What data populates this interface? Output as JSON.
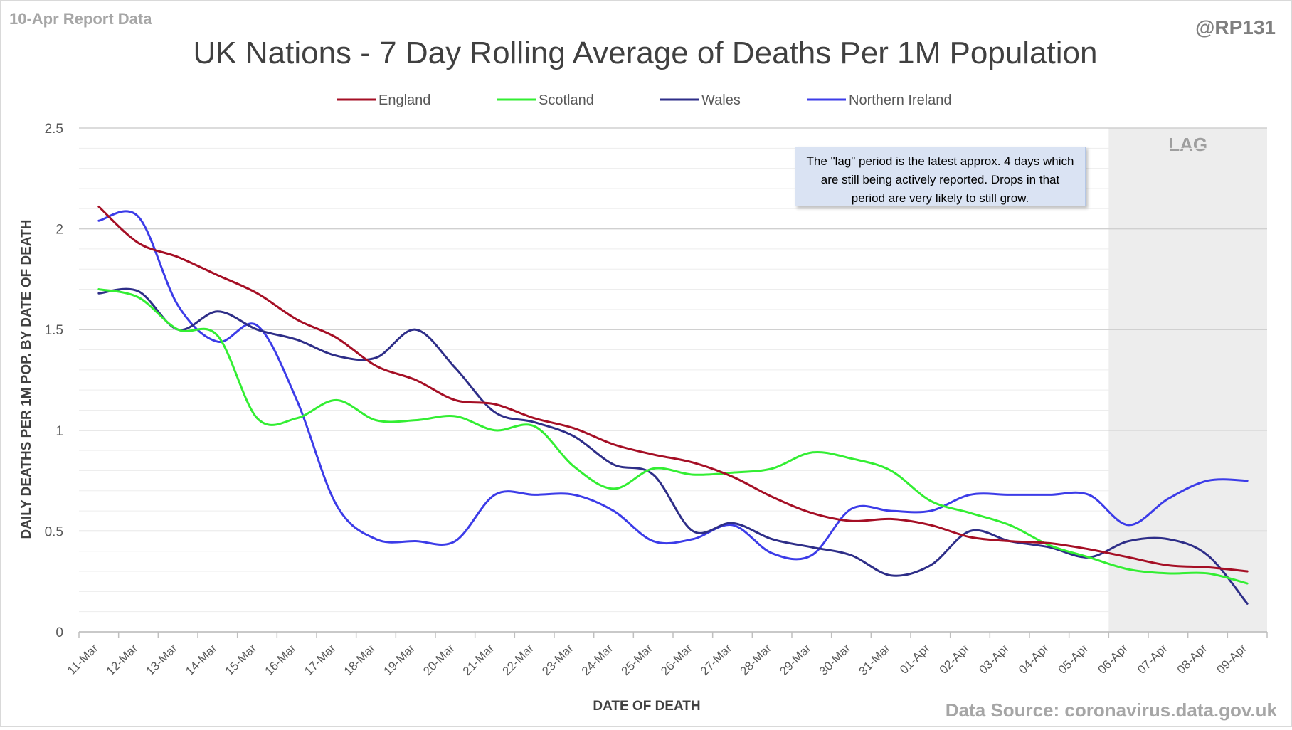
{
  "header": {
    "report_label": "10-Apr Report Data",
    "handle": "@RP131",
    "source": "Data Source: coronavirus.data.gov.uk"
  },
  "annotation": {
    "text": "The \"lag\" period is the latest approx. 4 days which are still being actively reported. Drops in that period are very likely to still grow.",
    "lag_label": "LAG"
  },
  "chart_data": {
    "type": "line",
    "title": "UK Nations - 7 Day Rolling Average of Deaths Per 1M Population",
    "xlabel": "DATE OF DEATH",
    "ylabel": "DAILY DEATHS PER 1M POP. BY DATE OF DEATH",
    "ylim": [
      0,
      2.5
    ],
    "yticks": [
      0,
      0.5,
      1,
      1.5,
      2,
      2.5
    ],
    "grid": true,
    "legend_position": "top",
    "lag_start": "06-Apr",
    "lag_color": "#ededed",
    "categories": [
      "11-Mar",
      "12-Mar",
      "13-Mar",
      "14-Mar",
      "15-Mar",
      "16-Mar",
      "17-Mar",
      "18-Mar",
      "19-Mar",
      "20-Mar",
      "21-Mar",
      "22-Mar",
      "23-Mar",
      "24-Mar",
      "25-Mar",
      "26-Mar",
      "27-Mar",
      "28-Mar",
      "29-Mar",
      "30-Mar",
      "31-Mar",
      "01-Apr",
      "02-Apr",
      "03-Apr",
      "04-Apr",
      "05-Apr",
      "06-Apr",
      "07-Apr",
      "08-Apr",
      "09-Apr"
    ],
    "series": [
      {
        "name": "England",
        "color": "#a50f25",
        "values": [
          2.11,
          1.93,
          1.86,
          1.77,
          1.68,
          1.55,
          1.46,
          1.32,
          1.25,
          1.15,
          1.13,
          1.06,
          1.01,
          0.93,
          0.88,
          0.84,
          0.77,
          0.67,
          0.59,
          0.55,
          0.56,
          0.53,
          0.47,
          0.45,
          0.44,
          0.41,
          0.37,
          0.33,
          0.32,
          0.3
        ]
      },
      {
        "name": "Scotland",
        "color": "#33ee33",
        "values": [
          1.7,
          1.66,
          1.5,
          1.47,
          1.06,
          1.06,
          1.15,
          1.05,
          1.05,
          1.07,
          1,
          1.02,
          0.82,
          0.71,
          0.81,
          0.78,
          0.79,
          0.81,
          0.89,
          0.86,
          0.8,
          0.65,
          0.59,
          0.53,
          0.43,
          0.37,
          0.31,
          0.29,
          0.29,
          0.24
        ]
      },
      {
        "name": "Wales",
        "color": "#2e2e88",
        "values": [
          1.68,
          1.69,
          1.5,
          1.59,
          1.5,
          1.45,
          1.37,
          1.36,
          1.5,
          1.31,
          1.09,
          1.04,
          0.97,
          0.83,
          0.78,
          0.5,
          0.54,
          0.46,
          0.42,
          0.38,
          0.28,
          0.33,
          0.5,
          0.45,
          0.42,
          0.37,
          0.45,
          0.46,
          0.38,
          0.14
        ]
      },
      {
        "name": "Northern Ireland",
        "color": "#3c3ce8",
        "values": [
          2.04,
          2.06,
          1.62,
          1.44,
          1.52,
          1.15,
          0.63,
          0.46,
          0.45,
          0.45,
          0.68,
          0.68,
          0.68,
          0.6,
          0.45,
          0.46,
          0.53,
          0.39,
          0.38,
          0.61,
          0.6,
          0.6,
          0.68,
          0.68,
          0.68,
          0.68,
          0.53,
          0.66,
          0.75,
          0.75
        ]
      }
    ]
  }
}
